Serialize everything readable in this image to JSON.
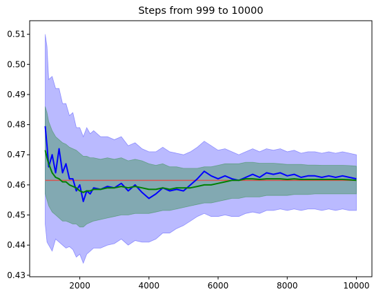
{
  "chart_data": {
    "type": "line",
    "title": "Steps from 999 to 10000",
    "xlabel": "",
    "ylabel": "",
    "xlim": [
      550,
      10450
    ],
    "ylim": [
      0.4295,
      0.5145
    ],
    "x_ticks": [
      2000,
      4000,
      6000,
      8000,
      10000
    ],
    "y_ticks": [
      0.43,
      0.44,
      0.45,
      0.46,
      0.47,
      0.48,
      0.49,
      0.5,
      0.51
    ],
    "grid": false,
    "legend": "none",
    "reference_line": {
      "y": 0.4615,
      "x_range": [
        999,
        10000
      ],
      "color": "#d9534f"
    },
    "x": [
      999,
      1050,
      1100,
      1200,
      1300,
      1400,
      1500,
      1600,
      1700,
      1800,
      1900,
      2000,
      2100,
      2200,
      2300,
      2400,
      2600,
      2800,
      3000,
      3200,
      3400,
      3600,
      3800,
      4000,
      4200,
      4400,
      4600,
      4800,
      5000,
      5200,
      5400,
      5600,
      5800,
      6000,
      6200,
      6400,
      6600,
      6800,
      7000,
      7200,
      7400,
      7600,
      7800,
      8000,
      8200,
      8400,
      8600,
      8800,
      9000,
      9200,
      9400,
      9600,
      9800,
      10000
    ],
    "series": [
      {
        "color": "#0000ff",
        "values": [
          0.4795,
          0.473,
          0.466,
          0.47,
          0.464,
          0.472,
          0.464,
          0.467,
          0.462,
          0.462,
          0.458,
          0.46,
          0.4545,
          0.458,
          0.457,
          0.459,
          0.4585,
          0.4595,
          0.459,
          0.4605,
          0.458,
          0.46,
          0.4575,
          0.4555,
          0.457,
          0.459,
          0.458,
          0.4585,
          0.458,
          0.46,
          0.462,
          0.4645,
          0.463,
          0.462,
          0.463,
          0.462,
          0.4615,
          0.4625,
          0.4635,
          0.4625,
          0.464,
          0.4635,
          0.464,
          0.463,
          0.4635,
          0.4625,
          0.463,
          0.463,
          0.4625,
          0.463,
          0.4625,
          0.463,
          0.4625,
          0.462
        ],
        "band_lower": [
          0.447,
          0.441,
          0.44,
          0.438,
          0.442,
          0.441,
          0.44,
          0.439,
          0.4395,
          0.4385,
          0.436,
          0.437,
          0.434,
          0.437,
          0.438,
          0.439,
          0.439,
          0.44,
          0.4405,
          0.442,
          0.44,
          0.4415,
          0.441,
          0.441,
          0.442,
          0.444,
          0.444,
          0.4455,
          0.4465,
          0.448,
          0.4495,
          0.4505,
          0.4495,
          0.4495,
          0.45,
          0.4495,
          0.4495,
          0.4505,
          0.451,
          0.4505,
          0.4515,
          0.4515,
          0.452,
          0.4515,
          0.452,
          0.4515,
          0.452,
          0.452,
          0.4515,
          0.452,
          0.4515,
          0.452,
          0.4515,
          0.4515
        ],
        "band_upper": [
          0.51,
          0.506,
          0.495,
          0.496,
          0.492,
          0.492,
          0.487,
          0.487,
          0.483,
          0.484,
          0.479,
          0.479,
          0.476,
          0.479,
          0.477,
          0.478,
          0.476,
          0.476,
          0.475,
          0.476,
          0.473,
          0.474,
          0.472,
          0.471,
          0.471,
          0.4725,
          0.471,
          0.4705,
          0.47,
          0.471,
          0.4725,
          0.4745,
          0.473,
          0.4715,
          0.472,
          0.471,
          0.47,
          0.471,
          0.472,
          0.471,
          0.472,
          0.4715,
          0.472,
          0.471,
          0.4715,
          0.4705,
          0.471,
          0.471,
          0.4705,
          0.471,
          0.4705,
          0.471,
          0.4705,
          0.47
        ]
      },
      {
        "color": "#008000",
        "values": [
          0.4715,
          0.469,
          0.467,
          0.464,
          0.4625,
          0.462,
          0.461,
          0.461,
          0.46,
          0.4595,
          0.459,
          0.458,
          0.4575,
          0.458,
          0.458,
          0.4585,
          0.4585,
          0.459,
          0.459,
          0.4595,
          0.459,
          0.4595,
          0.459,
          0.4585,
          0.4585,
          0.459,
          0.4585,
          0.459,
          0.459,
          0.459,
          0.4595,
          0.46,
          0.46,
          0.4605,
          0.461,
          0.4615,
          0.4615,
          0.462,
          0.462,
          0.4618,
          0.462,
          0.462,
          0.462,
          0.4618,
          0.462,
          0.4618,
          0.4618,
          0.4618,
          0.4618,
          0.4618,
          0.4618,
          0.4618,
          0.4617,
          0.4615
        ],
        "band_lower": [
          0.457,
          0.455,
          0.453,
          0.451,
          0.45,
          0.449,
          0.448,
          0.448,
          0.4475,
          0.447,
          0.447,
          0.446,
          0.446,
          0.447,
          0.4475,
          0.448,
          0.4485,
          0.449,
          0.4495,
          0.45,
          0.45,
          0.4505,
          0.4505,
          0.4505,
          0.451,
          0.4515,
          0.4515,
          0.452,
          0.4525,
          0.453,
          0.4535,
          0.454,
          0.454,
          0.4545,
          0.455,
          0.4555,
          0.4555,
          0.456,
          0.456,
          0.456,
          0.4565,
          0.4565,
          0.4565,
          0.4565,
          0.4568,
          0.4568,
          0.4568,
          0.457,
          0.457,
          0.457,
          0.457,
          0.457,
          0.457,
          0.457
        ],
        "band_upper": [
          0.486,
          0.484,
          0.481,
          0.478,
          0.476,
          0.475,
          0.474,
          0.4735,
          0.4725,
          0.472,
          0.4715,
          0.4705,
          0.4695,
          0.4695,
          0.469,
          0.469,
          0.4685,
          0.469,
          0.4685,
          0.469,
          0.468,
          0.4685,
          0.468,
          0.467,
          0.4665,
          0.467,
          0.466,
          0.466,
          0.4655,
          0.4655,
          0.4655,
          0.466,
          0.466,
          0.4665,
          0.467,
          0.467,
          0.467,
          0.4675,
          0.4675,
          0.4672,
          0.4672,
          0.4672,
          0.467,
          0.4668,
          0.4668,
          0.4668,
          0.4666,
          0.4666,
          0.4665,
          0.4665,
          0.4665,
          0.4665,
          0.4664,
          0.4662
        ]
      }
    ]
  }
}
